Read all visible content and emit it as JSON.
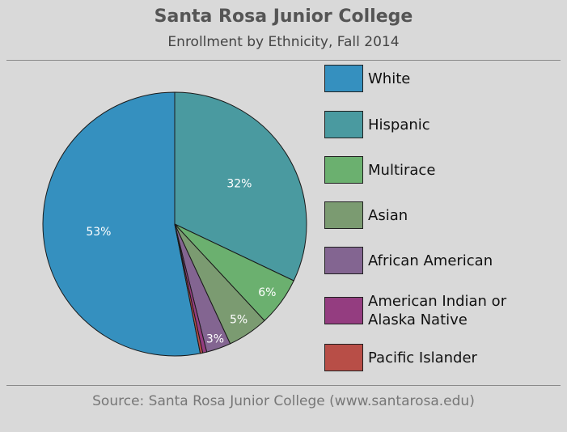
{
  "header": {
    "title": "Santa Rosa Junior College",
    "subtitle": "Enrollment by Ethnicity, Fall 2014"
  },
  "footer": {
    "source": "Source: Santa Rosa Junior College (www.santarosa.edu)"
  },
  "chart_data": {
    "type": "pie",
    "title": "Santa Rosa Junior College",
    "subtitle": "Enrollment by Ethnicity, Fall 2014",
    "legend_position": "right",
    "slices": [
      {
        "label": "White",
        "value": 53,
        "display": "53%",
        "color": "#3590bf"
      },
      {
        "label": "Hispanic",
        "value": 32,
        "display": "32%",
        "color": "#4a9aa0"
      },
      {
        "label": "Multirace",
        "value": 6,
        "display": "6%",
        "color": "#6bb06f"
      },
      {
        "label": "Asian",
        "value": 5,
        "display": "5%",
        "color": "#7b9b71"
      },
      {
        "label": "African American",
        "value": 3,
        "display": "3%",
        "color": "#836591"
      },
      {
        "label": "American Indian or Alaska Native",
        "value": 0.5,
        "display": "",
        "color": "#943d80"
      },
      {
        "label": "Pacific Islander",
        "value": 0.3,
        "display": "",
        "color": "#b84e47"
      }
    ]
  }
}
